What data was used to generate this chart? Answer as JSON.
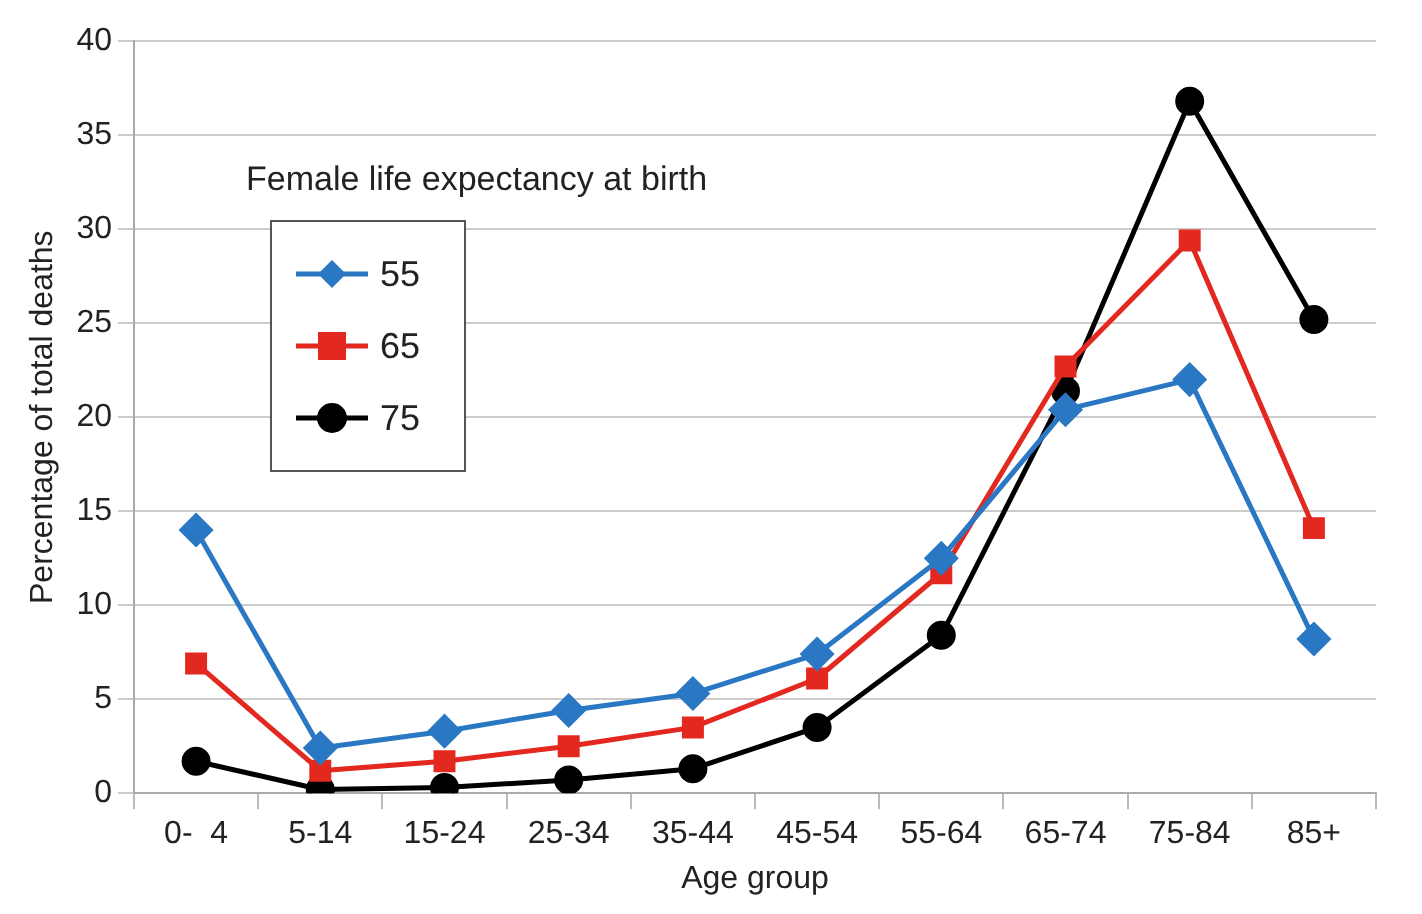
{
  "chart_data": {
    "type": "line",
    "xlabel": "Age group",
    "ylabel": "Percentage of total deaths",
    "legend_title": "Female life expectancy at birth",
    "legend": "top left",
    "grid": "y",
    "categories": [
      "0-  4",
      "5-14",
      "15-24",
      "25-34",
      "35-44",
      "45-54",
      "55-64",
      "65-74",
      "75-84",
      "85+"
    ],
    "ylim": [
      0,
      40
    ],
    "yticks": [
      0,
      5,
      10,
      15,
      20,
      25,
      30,
      35,
      40
    ],
    "series": [
      {
        "name": "55",
        "color": "#2a77c4",
        "marker": "diamond",
        "values": [
          14,
          2.4,
          3.3,
          4.4,
          5.3,
          7.4,
          12.5,
          20.4,
          22,
          8.2
        ]
      },
      {
        "name": "65",
        "color": "#e2281f",
        "marker": "square",
        "values": [
          6.9,
          1.2,
          1.7,
          2.5,
          3.5,
          6.1,
          11.7,
          22.7,
          29.4,
          14.1
        ]
      },
      {
        "name": "75",
        "color": "#000000",
        "marker": "circle",
        "values": [
          1.7,
          0.2,
          0.3,
          0.7,
          1.3,
          3.5,
          8.4,
          21.4,
          36.8,
          25.2
        ]
      }
    ]
  }
}
